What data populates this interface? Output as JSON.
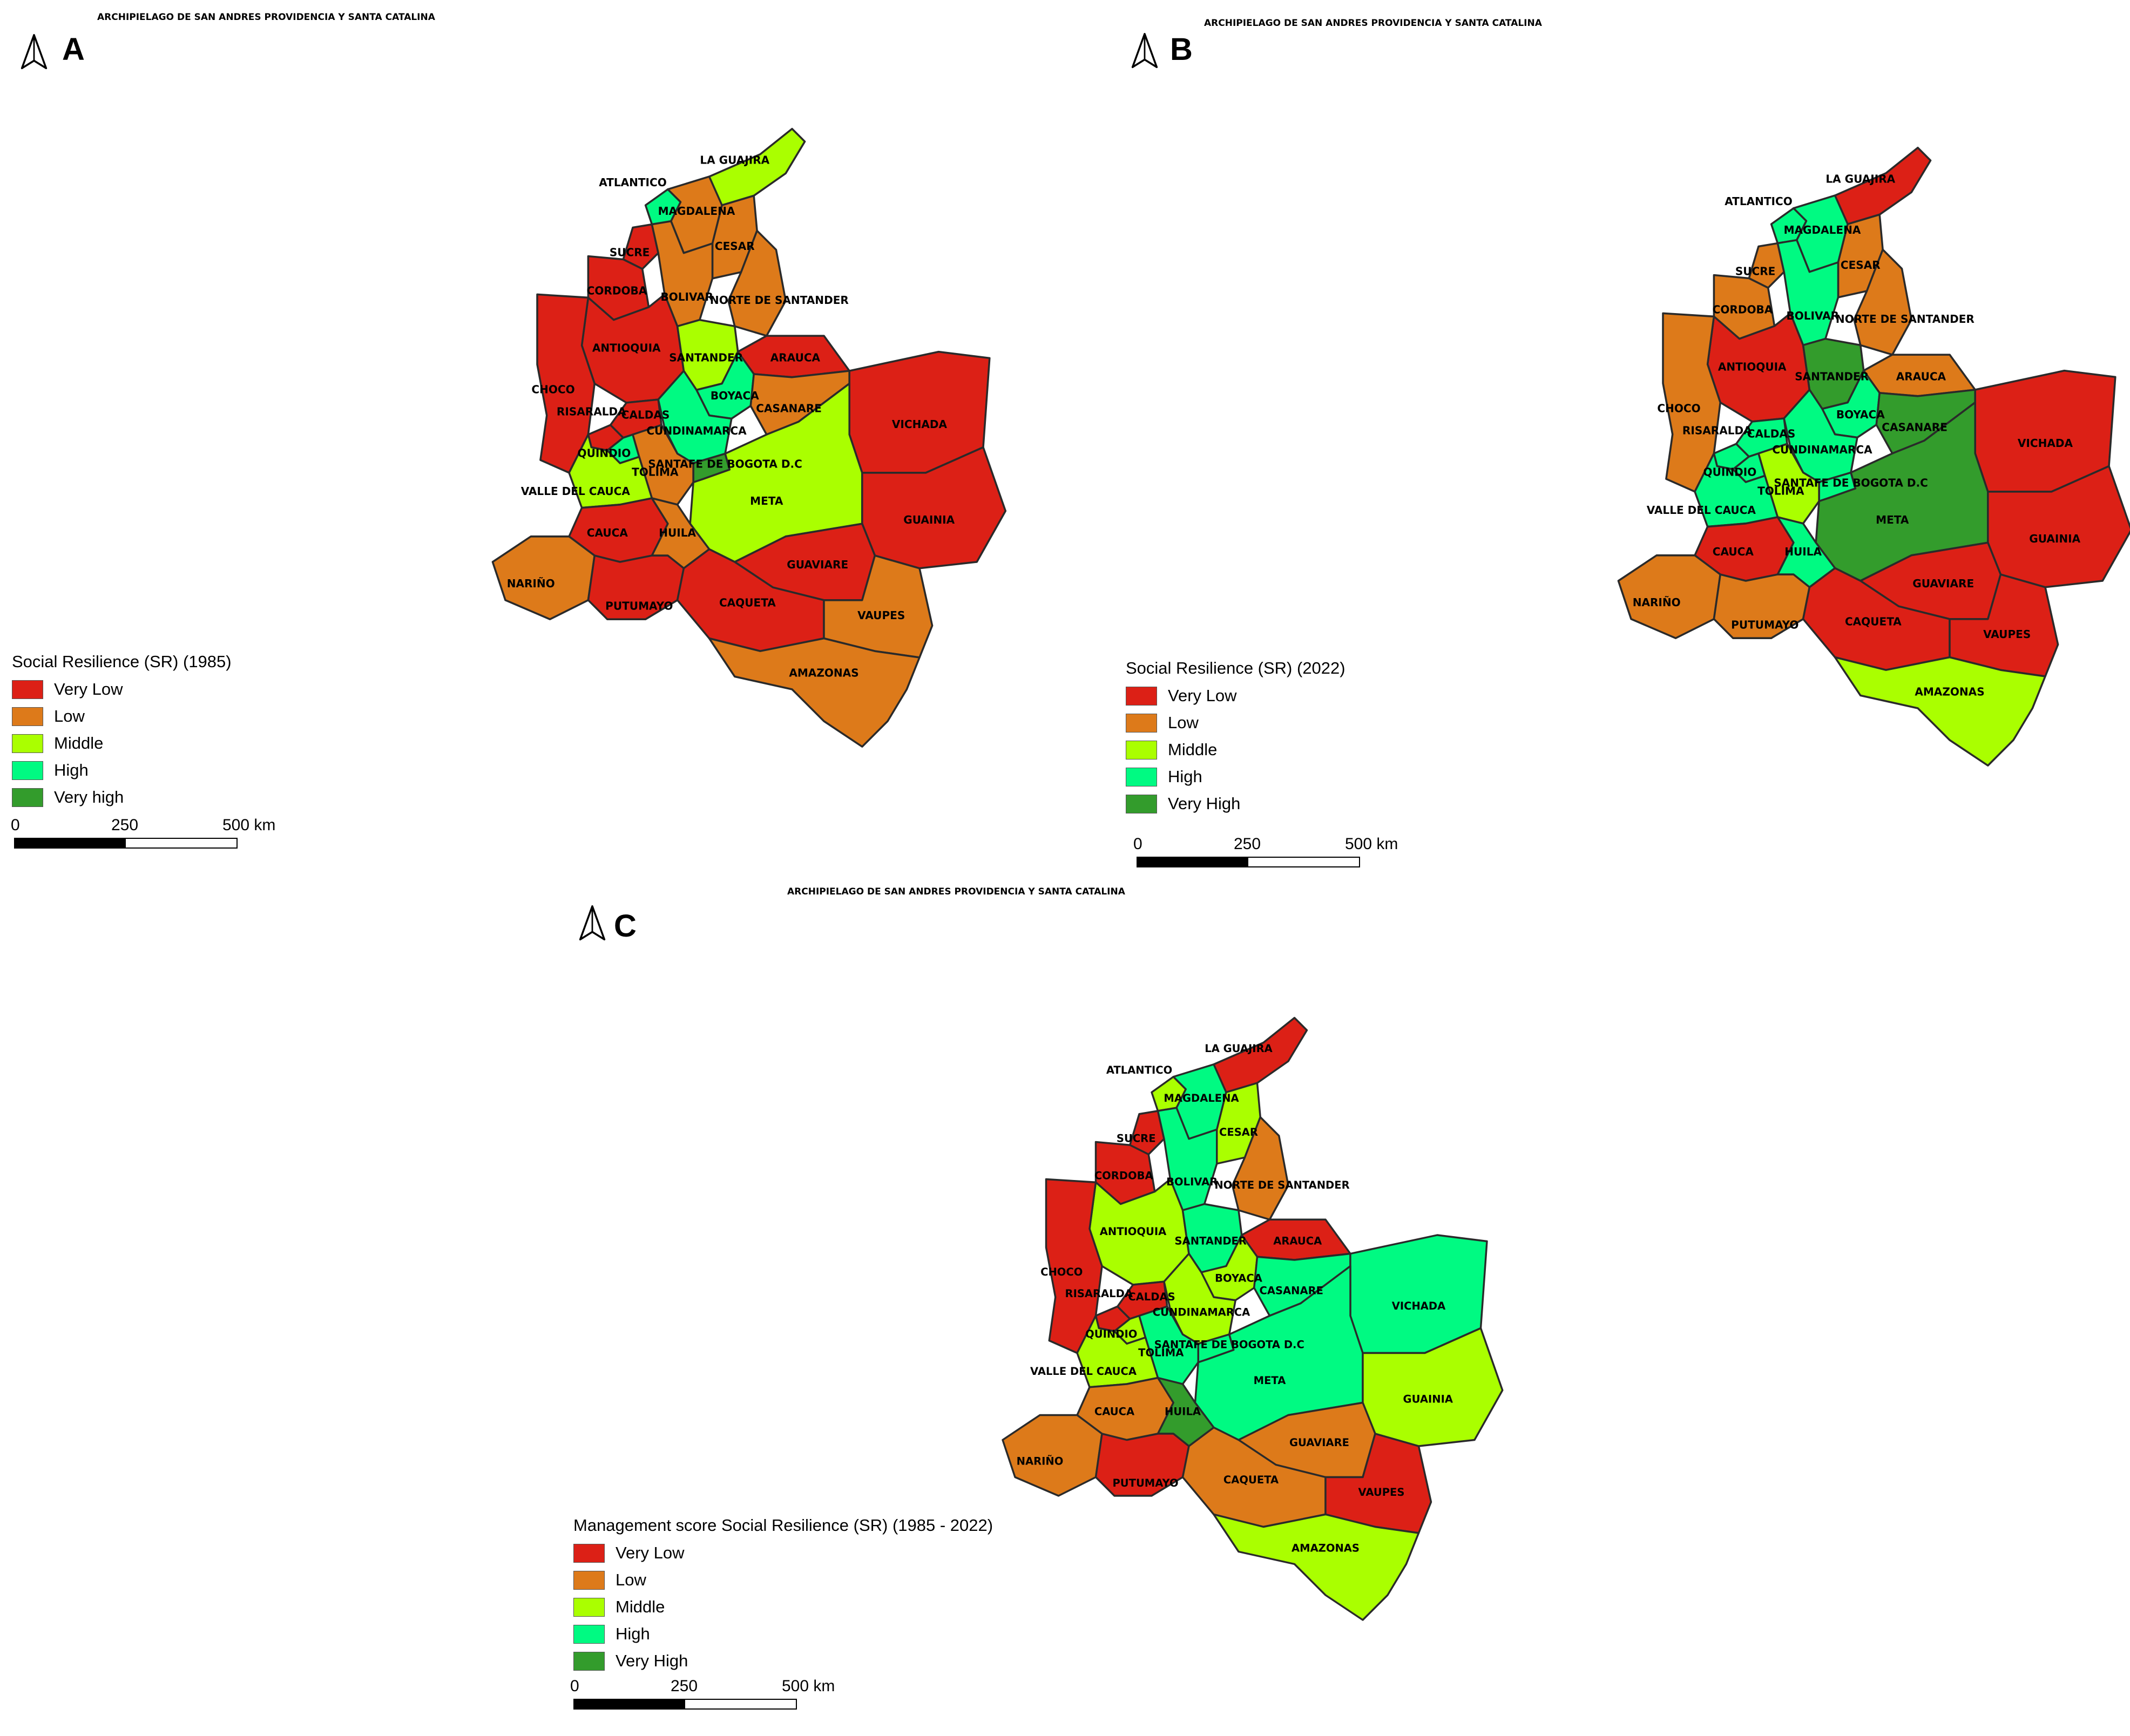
{
  "colors": {
    "very_low": "#dc2016",
    "low": "#dd7a1a",
    "middle": "#aaff00",
    "high": "#00fa82",
    "very_high": "#339c2c"
  },
  "icons": {
    "north_arrow": "north-arrow-icon"
  },
  "island_label": "ARCHIPIELAGO DE SAN ANDRES PROVIDENCIA Y SANTA CATALINA",
  "panels": [
    {
      "id": "A",
      "label": "A",
      "legend": {
        "title": "Social Resilience (SR) (1985)",
        "items": [
          {
            "label": "Very Low",
            "class": "very_low"
          },
          {
            "label": "Low",
            "class": "low"
          },
          {
            "label": "Middle",
            "class": "middle"
          },
          {
            "label": "High",
            "class": "high"
          },
          {
            "label": "Very high",
            "class": "very_high"
          }
        ]
      },
      "scale": {
        "labels": [
          "0",
          "250",
          "500 km"
        ]
      },
      "departments": [
        {
          "name": "LA GUAJIRA",
          "class": "middle"
        },
        {
          "name": "ATLANTICO",
          "class": "high"
        },
        {
          "name": "MAGDALENA",
          "class": "low"
        },
        {
          "name": "CESAR",
          "class": "low"
        },
        {
          "name": "SUCRE",
          "class": "very_low"
        },
        {
          "name": "BOLIVAR",
          "class": "low"
        },
        {
          "name": "CORDOBA",
          "class": "very_low"
        },
        {
          "name": "NORTE DE SANTANDER",
          "class": "low"
        },
        {
          "name": "ANTIOQUIA",
          "class": "very_low"
        },
        {
          "name": "SANTANDER",
          "class": "middle"
        },
        {
          "name": "ARAUCA",
          "class": "very_low"
        },
        {
          "name": "CHOCO",
          "class": "very_low"
        },
        {
          "name": "BOYACA",
          "class": "high"
        },
        {
          "name": "CASANARE",
          "class": "low"
        },
        {
          "name": "RISARALDA",
          "class": "very_low"
        },
        {
          "name": "CALDAS",
          "class": "very_low"
        },
        {
          "name": "CUNDINAMARCA",
          "class": "high"
        },
        {
          "name": "VICHADA",
          "class": "very_low"
        },
        {
          "name": "QUINDIO",
          "class": "high"
        },
        {
          "name": "SANTAFE DE BOGOTA D.C",
          "class": "very_high"
        },
        {
          "name": "TOLIMA",
          "class": "low"
        },
        {
          "name": "VALLE DEL CAUCA",
          "class": "middle"
        },
        {
          "name": "META",
          "class": "middle"
        },
        {
          "name": "GUAINIA",
          "class": "very_low"
        },
        {
          "name": "CAUCA",
          "class": "very_low"
        },
        {
          "name": "HUILA",
          "class": "low"
        },
        {
          "name": "NARIÑO",
          "class": "low"
        },
        {
          "name": "GUAVIARE",
          "class": "very_low"
        },
        {
          "name": "PUTUMAYO",
          "class": "very_low"
        },
        {
          "name": "CAQUETA",
          "class": "very_low"
        },
        {
          "name": "VAUPES",
          "class": "low"
        },
        {
          "name": "AMAZONAS",
          "class": "low"
        }
      ]
    },
    {
      "id": "B",
      "label": "B",
      "legend": {
        "title": "Social Resilience (SR) (2022)",
        "items": [
          {
            "label": "Very Low",
            "class": "very_low"
          },
          {
            "label": "Low",
            "class": "low"
          },
          {
            "label": "Middle",
            "class": "middle"
          },
          {
            "label": "High",
            "class": "high"
          },
          {
            "label": "Very High",
            "class": "very_high"
          }
        ]
      },
      "scale": {
        "labels": [
          "0",
          "250",
          "500 km"
        ]
      },
      "departments": [
        {
          "name": "LA GUAJIRA",
          "class": "very_low"
        },
        {
          "name": "ATLANTICO",
          "class": "high"
        },
        {
          "name": "MAGDALENA",
          "class": "high"
        },
        {
          "name": "CESAR",
          "class": "low"
        },
        {
          "name": "SUCRE",
          "class": "low"
        },
        {
          "name": "BOLIVAR",
          "class": "high"
        },
        {
          "name": "CORDOBA",
          "class": "low"
        },
        {
          "name": "NORTE DE SANTANDER",
          "class": "low"
        },
        {
          "name": "ANTIOQUIA",
          "class": "very_low"
        },
        {
          "name": "SANTANDER",
          "class": "very_high"
        },
        {
          "name": "ARAUCA",
          "class": "low"
        },
        {
          "name": "CHOCO",
          "class": "low"
        },
        {
          "name": "BOYACA",
          "class": "high"
        },
        {
          "name": "CASANARE",
          "class": "very_high"
        },
        {
          "name": "RISARALDA",
          "class": "high"
        },
        {
          "name": "CALDAS",
          "class": "high"
        },
        {
          "name": "CUNDINAMARCA",
          "class": "high"
        },
        {
          "name": "VICHADA",
          "class": "very_low"
        },
        {
          "name": "QUINDIO",
          "class": "high"
        },
        {
          "name": "SANTAFE DE BOGOTA D.C",
          "class": "high"
        },
        {
          "name": "TOLIMA",
          "class": "middle"
        },
        {
          "name": "VALLE DEL CAUCA",
          "class": "high"
        },
        {
          "name": "META",
          "class": "very_high"
        },
        {
          "name": "GUAINIA",
          "class": "very_low"
        },
        {
          "name": "CAUCA",
          "class": "very_low"
        },
        {
          "name": "HUILA",
          "class": "high"
        },
        {
          "name": "NARIÑO",
          "class": "low"
        },
        {
          "name": "GUAVIARE",
          "class": "very_low"
        },
        {
          "name": "PUTUMAYO",
          "class": "low"
        },
        {
          "name": "CAQUETA",
          "class": "very_low"
        },
        {
          "name": "VAUPES",
          "class": "very_low"
        },
        {
          "name": "AMAZONAS",
          "class": "middle"
        }
      ]
    },
    {
      "id": "C",
      "label": "C",
      "legend": {
        "title": "Management score Social Resilience (SR) (1985 - 2022)",
        "items": [
          {
            "label": "Very Low",
            "class": "very_low"
          },
          {
            "label": "Low",
            "class": "low"
          },
          {
            "label": "Middle",
            "class": "middle"
          },
          {
            "label": "High",
            "class": "high"
          },
          {
            "label": "Very High",
            "class": "very_high"
          }
        ]
      },
      "scale": {
        "labels": [
          "0",
          "250",
          "500 km"
        ]
      },
      "departments": [
        {
          "name": "LA GUAJIRA",
          "class": "very_low"
        },
        {
          "name": "ATLANTICO",
          "class": "middle"
        },
        {
          "name": "MAGDALENA",
          "class": "high"
        },
        {
          "name": "CESAR",
          "class": "middle"
        },
        {
          "name": "SUCRE",
          "class": "very_low"
        },
        {
          "name": "BOLIVAR",
          "class": "high"
        },
        {
          "name": "CORDOBA",
          "class": "very_low"
        },
        {
          "name": "NORTE DE SANTANDER",
          "class": "low"
        },
        {
          "name": "ANTIOQUIA",
          "class": "middle"
        },
        {
          "name": "SANTANDER",
          "class": "high"
        },
        {
          "name": "ARAUCA",
          "class": "very_low"
        },
        {
          "name": "CHOCO",
          "class": "very_low"
        },
        {
          "name": "BOYACA",
          "class": "middle"
        },
        {
          "name": "CASANARE",
          "class": "high"
        },
        {
          "name": "RISARALDA",
          "class": "very_low"
        },
        {
          "name": "CALDAS",
          "class": "very_low"
        },
        {
          "name": "CUNDINAMARCA",
          "class": "middle"
        },
        {
          "name": "VICHADA",
          "class": "high"
        },
        {
          "name": "QUINDIO",
          "class": "middle"
        },
        {
          "name": "SANTAFE DE BOGOTA D.C",
          "class": "high"
        },
        {
          "name": "TOLIMA",
          "class": "high"
        },
        {
          "name": "VALLE DEL CAUCA",
          "class": "middle"
        },
        {
          "name": "META",
          "class": "high"
        },
        {
          "name": "GUAINIA",
          "class": "middle"
        },
        {
          "name": "CAUCA",
          "class": "low"
        },
        {
          "name": "HUILA",
          "class": "very_high"
        },
        {
          "name": "NARIÑO",
          "class": "low"
        },
        {
          "name": "GUAVIARE",
          "class": "low"
        },
        {
          "name": "PUTUMAYO",
          "class": "very_low"
        },
        {
          "name": "CAQUETA",
          "class": "low"
        },
        {
          "name": "VAUPES",
          "class": "very_low"
        },
        {
          "name": "AMAZONAS",
          "class": "middle"
        }
      ]
    }
  ]
}
